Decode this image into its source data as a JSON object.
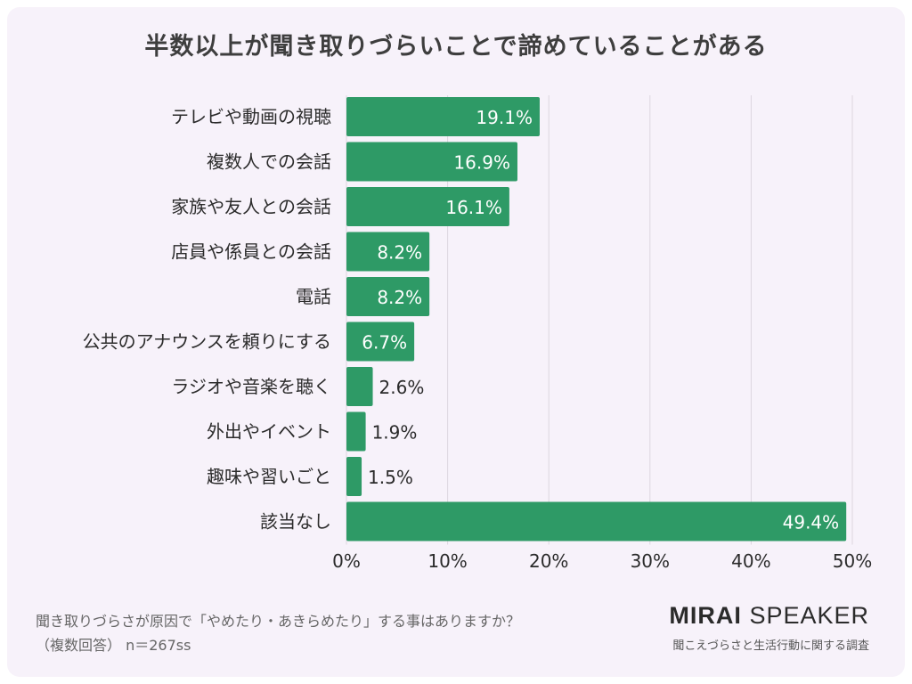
{
  "header": {
    "title": "半数以上が聞き取りづらいことで諦めていることがある"
  },
  "footer": {
    "question": "聞き取りづらさが原因で「やめたり・あきらめたり」する事はありますか？",
    "note": "（複数回答）  n＝267ss"
  },
  "brand": {
    "name_bold": "MIRAI",
    "name_light": "SPEAKER",
    "tagline": "聞こえづらさと生活行動に関する調査"
  },
  "chart_data": {
    "type": "bar",
    "orientation": "horizontal",
    "title": "半数以上が聞き取りづらいことで諦めていることがある",
    "categories": [
      "テレビや動画の視聴",
      "複数人での会話",
      "家族や友人との会話",
      "店員や係員との会話",
      "電話",
      "公共のアナウンスを頼りにする",
      "ラジオや音楽を聴く",
      "外出やイベント",
      "趣味や習いごと",
      "該当なし"
    ],
    "values": [
      19.1,
      16.9,
      16.1,
      8.2,
      8.2,
      6.7,
      2.6,
      1.9,
      1.5,
      49.4
    ],
    "data_labels": [
      "19.1%",
      "16.9%",
      "16.1%",
      "8.2%",
      "8.2%",
      "6.7%",
      "2.6%",
      "1.9%",
      "1.5%",
      "49.4%"
    ],
    "xlim": [
      0,
      50
    ],
    "xticks": [
      0,
      10,
      20,
      30,
      40,
      50
    ],
    "xtick_labels": [
      "0%",
      "10%",
      "20%",
      "30%",
      "40%",
      "50%"
    ],
    "grid": true,
    "bar_color": "#2e9a66"
  }
}
